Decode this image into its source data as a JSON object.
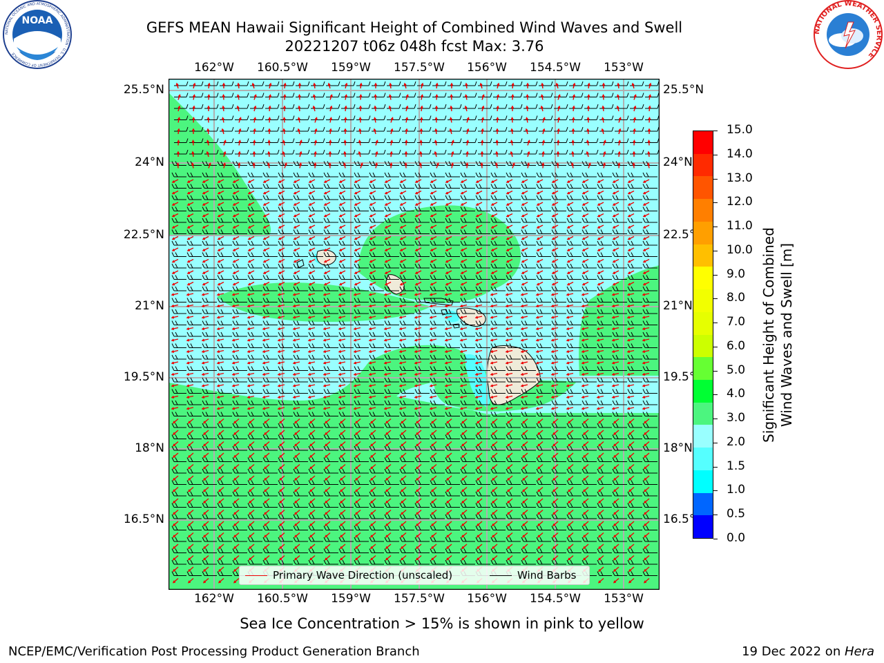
{
  "header": {
    "title_line1": "GEFS MEAN Hawaii Significant Height of Combined Wind Waves and Swell",
    "title_line2": "20221207 t06z 048h fcst   Max: 3.76"
  },
  "logos": {
    "noaa_text": "NOAA",
    "noaa_ring_text": "NATIONAL OCEANIC AND ATMOSPHERIC ADMINISTRATION · U.S. DEPARTMENT OF COMMERCE",
    "nws_ring_text": "NATIONAL WEATHER SERVICE"
  },
  "map": {
    "lon_ticks": [
      "162°W",
      "160.5°W",
      "159°W",
      "157.5°W",
      "156°W",
      "154.5°W",
      "153°W"
    ],
    "lat_ticks_left": [
      "25.5°N",
      "24°N",
      "22.5°N",
      "21°N",
      "19.5°N",
      "18°N",
      "16.5°N"
    ],
    "lat_ticks_right": [
      "25.5°N",
      "24°N",
      "22.5°N",
      "21°N",
      "19.5°N",
      "18°N",
      "16.5°N"
    ],
    "colors": {
      "ocean_band_2_3": "#99ffff",
      "ocean_band_3_4": "#4cf57f",
      "ocean_band_1_5_2": "#55ffff",
      "land": "#efebd9",
      "wave_arrow": "#ee0000",
      "wind_barb": "#000000"
    }
  },
  "legend": {
    "primary_wave": "Primary Wave Direction (unscaled)",
    "wind_barbs": "Wind Barbs"
  },
  "colorbar": {
    "title": "Significant Height of Combined Wind Waves and Swell [m]",
    "title_line1": "Significant Height of Combined",
    "title_line2": "Wind Waves and Swell [m]",
    "labels": [
      "15.0",
      "14.0",
      "13.0",
      "12.0",
      "11.0",
      "10.0",
      "9.0",
      "8.0",
      "7.0",
      "6.0",
      "5.0",
      "4.0",
      "3.0",
      "2.0",
      "1.5",
      "1.0",
      "0.5",
      "0.0"
    ],
    "colors_top_to_bottom": [
      "#ff0000",
      "#ff2a00",
      "#ff5500",
      "#ff7f00",
      "#ff9f00",
      "#ffbf00",
      "#ffff00",
      "#f2ff00",
      "#e6ff00",
      "#ccff00",
      "#66ff33",
      "#00ff33",
      "#4cf57f",
      "#99ffff",
      "#55ffff",
      "#00ffff",
      "#0066ff",
      "#0000ff"
    ]
  },
  "chart_data": {
    "type": "heatmap",
    "title": "GEFS MEAN Hawaii Significant Height of Combined Wind Waves and Swell",
    "subtitle": "20221207 t06z 048h fcst   Max: 3.76",
    "max_value": 3.76,
    "x_ticks": [
      "162°W",
      "160.5°W",
      "159°W",
      "157.5°W",
      "156°W",
      "154.5°W",
      "153°W"
    ],
    "y_ticks": [
      "25.5°N",
      "24°N",
      "22.5°N",
      "21°N",
      "19.5°N",
      "18°N",
      "16.5°N"
    ],
    "colorbar_levels": [
      0.0,
      0.5,
      1.0,
      1.5,
      2.0,
      3.0,
      4.0,
      5.0,
      6.0,
      7.0,
      8.0,
      9.0,
      10.0,
      11.0,
      12.0,
      13.0,
      14.0,
      15.0
    ],
    "grid": true
  },
  "note": "Sea Ice Concentration > 15% is shown in pink to yellow",
  "footer": {
    "left": "NCEP/EMC/Verification Post Processing Product Generation Branch",
    "right_prefix": "19 Dec 2022 on ",
    "right_machine": "Hera"
  }
}
